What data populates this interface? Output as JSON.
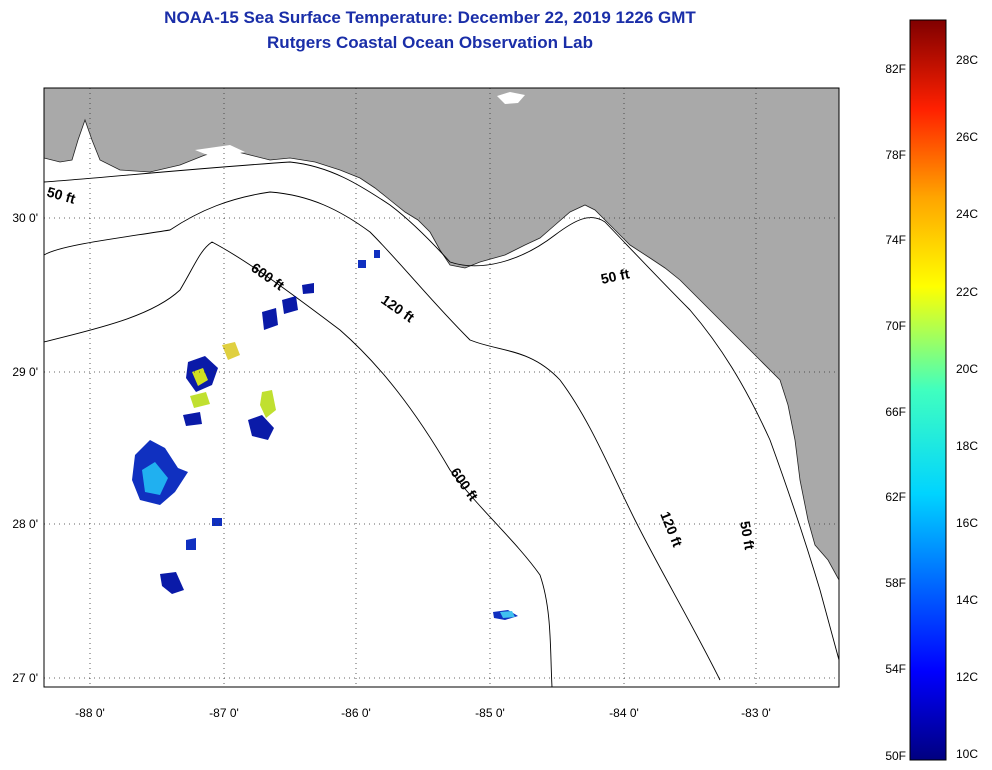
{
  "header": {
    "title": "NOAA-15 Sea Surface Temperature:  December 22, 2019 1226 GMT",
    "subtitle": "Rutgers Coastal Ocean Observation Lab"
  },
  "axes": {
    "lon_labels": [
      "-88 0'",
      "-87 0'",
      "-86 0'",
      "-85 0'",
      "-84 0'",
      "-83 0'"
    ],
    "lat_labels": [
      "30 0'",
      "29 0'",
      "28 0'",
      "27 0'"
    ]
  },
  "contour_labels": {
    "c50_west": "50 ft",
    "c600_north": "600 ft",
    "c120_north": "120 ft",
    "c50_east": "50 ft",
    "c600_south": "600 ft",
    "c120_south": "120 ft",
    "c50_south": "50 ft"
  },
  "colorbar": {
    "f_labels": [
      "82F",
      "78F",
      "74F",
      "70F",
      "66F",
      "62F",
      "58F",
      "54F",
      "50F"
    ],
    "c_labels": [
      "28C",
      "26C",
      "24C",
      "22C",
      "20C",
      "18C",
      "16C",
      "14C",
      "12C",
      "10C"
    ]
  },
  "colors": {
    "land": "#a9a9a9",
    "water": "#ffffff",
    "title": "#1a2ea8"
  }
}
